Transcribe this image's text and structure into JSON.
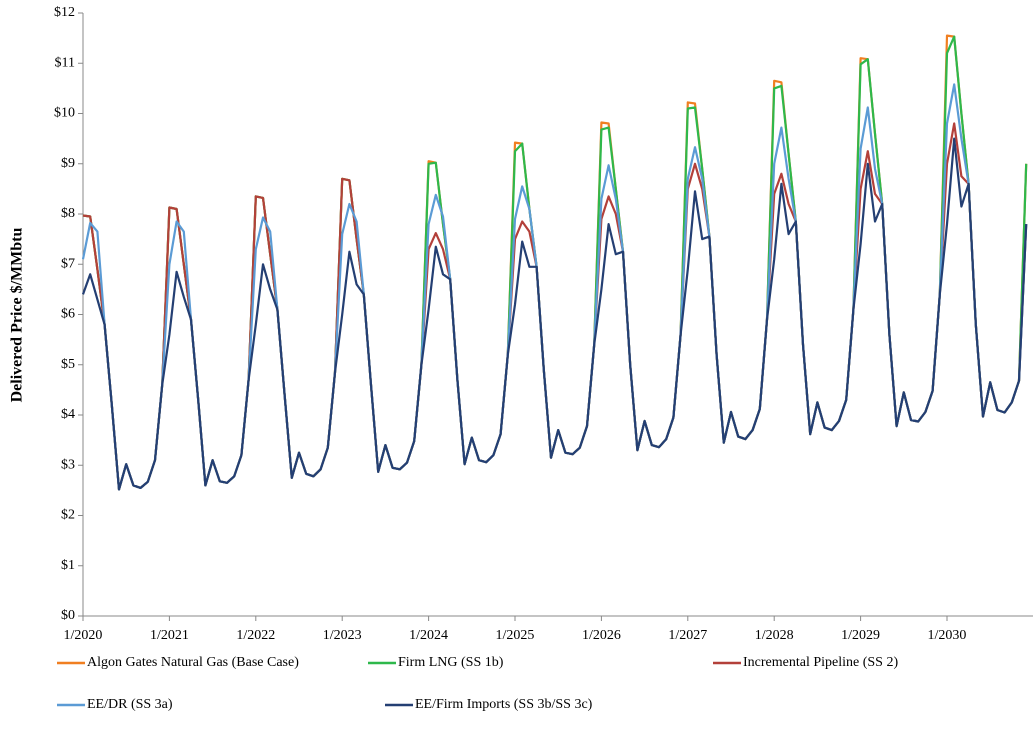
{
  "chart_data": {
    "type": "line",
    "y_label": "Delivered Price $/MMbtu",
    "categories": [
      "1/2020",
      null,
      null,
      null,
      null,
      null,
      null,
      null,
      null,
      null,
      null,
      null,
      "1/2021",
      null,
      null,
      null,
      null,
      null,
      null,
      null,
      null,
      null,
      null,
      null,
      "1/2022",
      null,
      null,
      null,
      null,
      null,
      null,
      null,
      null,
      null,
      null,
      null,
      "1/2023",
      null,
      null,
      null,
      null,
      null,
      null,
      null,
      null,
      null,
      null,
      null,
      "1/2024",
      null,
      null,
      null,
      null,
      null,
      null,
      null,
      null,
      null,
      null,
      null,
      "1/2025",
      null,
      null,
      null,
      null,
      null,
      null,
      null,
      null,
      null,
      null,
      null,
      "1/2026",
      null,
      null,
      null,
      null,
      null,
      null,
      null,
      null,
      null,
      null,
      null,
      "1/2027",
      null,
      null,
      null,
      null,
      null,
      null,
      null,
      null,
      null,
      null,
      null,
      "1/2028",
      null,
      null,
      null,
      null,
      null,
      null,
      null,
      null,
      null,
      null,
      null,
      "1/2029",
      null,
      null,
      null,
      null,
      null,
      null,
      null,
      null,
      null,
      null,
      null,
      "1/2030",
      null,
      null,
      null,
      null,
      null,
      null,
      null,
      null,
      null,
      null,
      null
    ],
    "ylim": [
      0,
      12
    ],
    "yticks": [
      {
        "value": 0,
        "label": "$0"
      },
      {
        "value": 1,
        "label": "$1"
      },
      {
        "value": 2,
        "label": "$2"
      },
      {
        "value": 3,
        "label": "$3"
      },
      {
        "value": 4,
        "label": "$4"
      },
      {
        "value": 5,
        "label": "$5"
      },
      {
        "value": 6,
        "label": "$6"
      },
      {
        "value": 7,
        "label": "$7"
      },
      {
        "value": 8,
        "label": "$8"
      },
      {
        "value": 9,
        "label": "$9"
      },
      {
        "value": 10,
        "label": "$10"
      },
      {
        "value": 11,
        "label": "$11"
      },
      {
        "value": 12,
        "label": "$12"
      }
    ],
    "series": [
      {
        "name": "Algon Gates Natural Gas (Base Case)",
        "color": "#f07f21",
        "values": [
          7.97,
          7.95,
          6.9,
          5.8,
          4.2,
          2.52,
          3.02,
          2.6,
          2.55,
          2.67,
          3.1,
          4.6,
          8.13,
          8.1,
          7.0,
          5.9,
          4.3,
          2.6,
          3.1,
          2.68,
          2.65,
          2.78,
          3.2,
          4.7,
          8.35,
          8.32,
          7.2,
          6.1,
          4.4,
          2.75,
          3.25,
          2.83,
          2.78,
          2.92,
          3.35,
          4.85,
          8.7,
          8.67,
          7.5,
          6.4,
          4.6,
          2.87,
          3.4,
          2.95,
          2.92,
          3.05,
          3.48,
          5.0,
          9.05,
          9.02,
          7.8,
          6.7,
          4.7,
          3.02,
          3.55,
          3.1,
          3.06,
          3.2,
          3.62,
          5.2,
          9.42,
          9.4,
          8.1,
          6.95,
          4.9,
          3.15,
          3.7,
          3.25,
          3.22,
          3.35,
          3.78,
          5.4,
          9.82,
          9.8,
          8.5,
          7.25,
          5.0,
          3.3,
          3.88,
          3.4,
          3.36,
          3.52,
          3.95,
          5.6,
          10.22,
          10.2,
          8.9,
          7.55,
          5.2,
          3.45,
          4.06,
          3.57,
          3.52,
          3.7,
          4.12,
          5.9,
          10.65,
          10.62,
          9.2,
          7.85,
          5.4,
          3.62,
          4.25,
          3.75,
          3.7,
          3.88,
          4.3,
          6.1,
          11.1,
          11.08,
          9.6,
          8.2,
          5.6,
          3.78,
          4.45,
          3.9,
          3.87,
          4.06,
          4.48,
          6.4,
          11.55,
          11.53,
          10.0,
          8.6,
          5.8,
          3.97,
          4.65,
          4.1,
          4.05,
          4.25,
          4.68,
          9.0
        ]
      },
      {
        "name": "Firm LNG (SS 1b)",
        "color": "#2eb84b",
        "values": [
          7.97,
          7.95,
          6.9,
          5.8,
          4.2,
          2.52,
          3.02,
          2.6,
          2.55,
          2.67,
          3.1,
          4.6,
          8.13,
          8.1,
          7.0,
          5.9,
          4.3,
          2.6,
          3.1,
          2.68,
          2.65,
          2.78,
          3.2,
          4.7,
          8.35,
          8.32,
          7.2,
          6.1,
          4.4,
          2.75,
          3.25,
          2.83,
          2.78,
          2.92,
          3.35,
          4.85,
          8.7,
          8.67,
          7.5,
          6.4,
          4.6,
          2.87,
          3.4,
          2.95,
          2.92,
          3.05,
          3.48,
          5.0,
          9.0,
          9.02,
          7.8,
          6.7,
          4.7,
          3.02,
          3.55,
          3.1,
          3.06,
          3.2,
          3.62,
          5.2,
          9.25,
          9.4,
          8.1,
          6.95,
          4.9,
          3.15,
          3.7,
          3.25,
          3.22,
          3.35,
          3.78,
          5.4,
          9.68,
          9.72,
          8.5,
          7.25,
          5.0,
          3.3,
          3.88,
          3.4,
          3.36,
          3.52,
          3.95,
          5.6,
          10.1,
          10.12,
          8.9,
          7.55,
          5.2,
          3.45,
          4.06,
          3.57,
          3.52,
          3.7,
          4.12,
          5.9,
          10.5,
          10.55,
          9.2,
          7.85,
          5.4,
          3.62,
          4.25,
          3.75,
          3.7,
          3.88,
          4.3,
          6.1,
          10.98,
          11.08,
          9.6,
          8.2,
          5.6,
          3.78,
          4.45,
          3.9,
          3.87,
          4.06,
          4.48,
          6.4,
          11.2,
          11.53,
          10.0,
          8.6,
          5.8,
          3.97,
          4.65,
          4.1,
          4.05,
          4.25,
          4.68,
          9.0
        ]
      },
      {
        "name": "Incremental Pipeline (SS 2)",
        "color": "#b3403a",
        "values": [
          7.97,
          7.95,
          6.9,
          5.8,
          4.2,
          2.52,
          3.02,
          2.6,
          2.55,
          2.67,
          3.1,
          4.6,
          8.13,
          8.1,
          7.0,
          5.9,
          4.3,
          2.6,
          3.1,
          2.68,
          2.65,
          2.78,
          3.2,
          4.7,
          8.35,
          8.32,
          7.2,
          6.1,
          4.4,
          2.75,
          3.25,
          2.83,
          2.78,
          2.92,
          3.35,
          4.85,
          8.7,
          8.67,
          7.5,
          6.4,
          4.6,
          2.87,
          3.4,
          2.95,
          2.92,
          3.05,
          3.48,
          5.0,
          7.3,
          7.62,
          7.3,
          6.7,
          4.7,
          3.02,
          3.55,
          3.1,
          3.06,
          3.2,
          3.62,
          5.2,
          7.5,
          7.85,
          7.65,
          6.95,
          4.9,
          3.15,
          3.7,
          3.25,
          3.22,
          3.35,
          3.78,
          5.4,
          7.9,
          8.35,
          8.0,
          7.25,
          5.0,
          3.3,
          3.88,
          3.4,
          3.36,
          3.52,
          3.95,
          5.6,
          8.5,
          9.0,
          8.5,
          7.55,
          5.2,
          3.45,
          4.06,
          3.57,
          3.52,
          3.7,
          4.12,
          5.9,
          8.4,
          8.8,
          8.2,
          7.85,
          5.4,
          3.62,
          4.25,
          3.75,
          3.7,
          3.88,
          4.3,
          6.1,
          8.5,
          9.25,
          8.4,
          8.2,
          5.6,
          3.78,
          4.45,
          3.9,
          3.87,
          4.06,
          4.48,
          6.4,
          9.0,
          9.8,
          8.75,
          8.6,
          5.8,
          3.97,
          4.65,
          4.1,
          4.05,
          4.25,
          4.68,
          7.8
        ]
      },
      {
        "name": "EE/DR (SS 3a)",
        "color": "#5b9bd5",
        "values": [
          7.1,
          7.82,
          7.65,
          5.8,
          4.2,
          2.52,
          3.02,
          2.6,
          2.55,
          2.67,
          3.1,
          4.6,
          7.0,
          7.85,
          7.65,
          5.9,
          4.3,
          2.6,
          3.1,
          2.68,
          2.65,
          2.78,
          3.2,
          4.7,
          7.3,
          7.93,
          7.65,
          6.1,
          4.4,
          2.75,
          3.25,
          2.83,
          2.78,
          2.92,
          3.35,
          4.85,
          7.6,
          8.2,
          7.85,
          6.4,
          4.6,
          2.87,
          3.4,
          2.95,
          2.92,
          3.05,
          3.48,
          5.0,
          7.8,
          8.38,
          7.95,
          6.7,
          4.7,
          3.02,
          3.55,
          3.1,
          3.06,
          3.2,
          3.62,
          5.2,
          7.9,
          8.55,
          8.1,
          6.95,
          4.9,
          3.15,
          3.7,
          3.25,
          3.22,
          3.35,
          3.78,
          5.4,
          8.3,
          8.97,
          8.3,
          7.25,
          5.0,
          3.3,
          3.88,
          3.4,
          3.36,
          3.52,
          3.95,
          5.6,
          8.7,
          9.33,
          8.7,
          7.55,
          5.2,
          3.45,
          4.06,
          3.57,
          3.52,
          3.7,
          4.12,
          5.9,
          9.0,
          9.72,
          8.7,
          7.85,
          5.4,
          3.62,
          4.25,
          3.75,
          3.7,
          3.88,
          4.3,
          6.1,
          9.3,
          10.12,
          8.9,
          8.2,
          5.6,
          3.78,
          4.45,
          3.9,
          3.87,
          4.06,
          4.48,
          6.4,
          9.8,
          10.58,
          9.5,
          8.6,
          5.8,
          3.97,
          4.65,
          4.1,
          4.05,
          4.25,
          4.68,
          7.8
        ]
      },
      {
        "name": "EE/Firm Imports (SS 3b/SS 3c)",
        "color": "#243f73",
        "values": [
          6.4,
          6.8,
          6.3,
          5.8,
          4.2,
          2.52,
          3.02,
          2.6,
          2.55,
          2.67,
          3.1,
          4.6,
          5.6,
          6.85,
          6.35,
          5.9,
          4.3,
          2.6,
          3.1,
          2.68,
          2.65,
          2.78,
          3.2,
          4.7,
          5.8,
          7.0,
          6.5,
          6.1,
          4.4,
          2.75,
          3.25,
          2.83,
          2.78,
          2.92,
          3.35,
          4.85,
          6.0,
          7.25,
          6.6,
          6.4,
          4.6,
          2.87,
          3.4,
          2.95,
          2.92,
          3.05,
          3.48,
          5.0,
          6.1,
          7.35,
          6.8,
          6.7,
          4.7,
          3.02,
          3.55,
          3.1,
          3.06,
          3.2,
          3.62,
          5.2,
          6.2,
          7.45,
          6.95,
          6.95,
          4.9,
          3.15,
          3.7,
          3.25,
          3.22,
          3.35,
          3.78,
          5.4,
          6.5,
          7.8,
          7.2,
          7.25,
          5.0,
          3.3,
          3.88,
          3.4,
          3.36,
          3.52,
          3.95,
          5.6,
          6.9,
          8.45,
          7.5,
          7.55,
          5.2,
          3.45,
          4.06,
          3.57,
          3.52,
          3.7,
          4.12,
          5.9,
          7.1,
          8.6,
          7.6,
          7.85,
          5.4,
          3.62,
          4.25,
          3.75,
          3.7,
          3.88,
          4.3,
          6.1,
          7.4,
          9.0,
          7.85,
          8.2,
          5.6,
          3.78,
          4.45,
          3.9,
          3.87,
          4.06,
          4.48,
          6.4,
          7.8,
          9.5,
          8.15,
          8.6,
          5.8,
          3.97,
          4.65,
          4.1,
          4.05,
          4.25,
          4.68,
          7.8
        ]
      }
    ],
    "legend": "bottom"
  }
}
